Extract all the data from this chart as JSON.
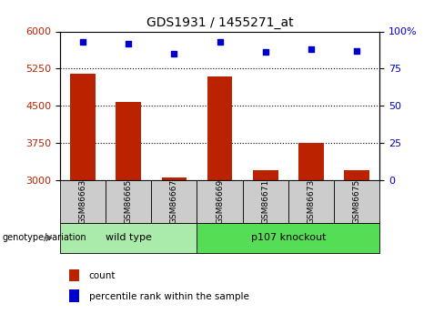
{
  "title": "GDS1931 / 1455271_at",
  "samples": [
    "GSM86663",
    "GSM86665",
    "GSM86667",
    "GSM86669",
    "GSM86671",
    "GSM86673",
    "GSM86675"
  ],
  "count_values": [
    5150,
    4580,
    3060,
    5100,
    3200,
    3760,
    3200
  ],
  "percentile_values": [
    93,
    92,
    85,
    93,
    86,
    88,
    87
  ],
  "ylim_left": [
    3000,
    6000
  ],
  "ylim_right": [
    0,
    100
  ],
  "yticks_left": [
    3000,
    3750,
    4500,
    5250,
    6000
  ],
  "yticks_right": [
    0,
    25,
    50,
    75,
    100
  ],
  "bar_color": "#bb2200",
  "dot_color": "#0000cc",
  "group1_label": "wild type",
  "group2_label": "p107 knockout",
  "group1_indices": [
    0,
    1,
    2
  ],
  "group2_indices": [
    3,
    4,
    5,
    6
  ],
  "group1_bg": "#aaeaaa",
  "group2_bg": "#55dd55",
  "sample_bg": "#cccccc",
  "genotype_label": "genotype/variation",
  "legend_count_label": "count",
  "legend_percentile_label": "percentile rank within the sample",
  "bar_width": 0.55,
  "title_fontsize": 10,
  "tick_fontsize": 8,
  "sample_fontsize": 6.5,
  "group_fontsize": 8,
  "legend_fontsize": 7.5,
  "genotype_fontsize": 7
}
